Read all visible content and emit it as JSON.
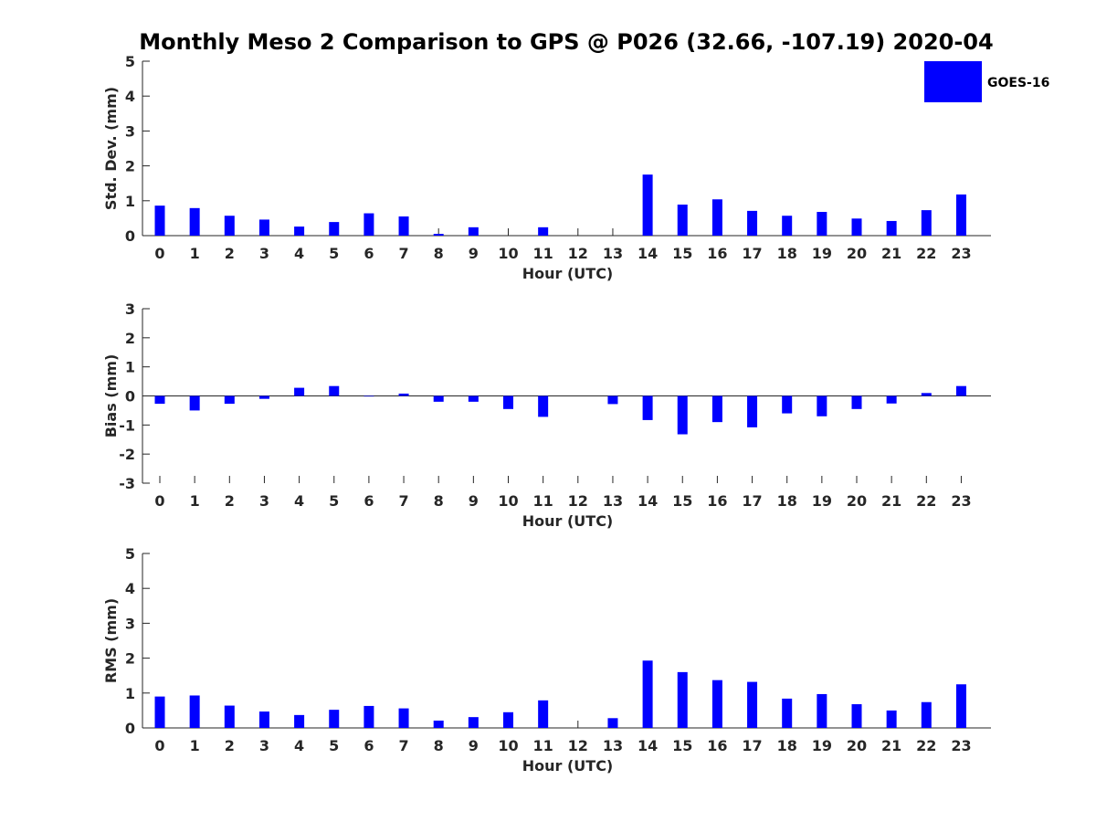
{
  "figure": {
    "title": "Monthly Meso 2 Comparison to GPS @ P026 (32.66, -107.19) 2020-04",
    "legend": {
      "label": "GOES-16",
      "color": "#0000ff",
      "position": "top-right"
    }
  },
  "chart_data": [
    {
      "type": "bar",
      "ylabel": "Std. Dev. (mm)",
      "xlabel": "Hour (UTC)",
      "ylim": [
        0,
        5
      ],
      "yticks": [
        0,
        1,
        2,
        3,
        4,
        5
      ],
      "categories": [
        "0",
        "1",
        "2",
        "3",
        "4",
        "5",
        "6",
        "7",
        "8",
        "9",
        "10",
        "11",
        "12",
        "13",
        "14",
        "15",
        "16",
        "17",
        "18",
        "19",
        "20",
        "21",
        "22",
        "23"
      ],
      "series": [
        {
          "name": "GOES-16",
          "color": "#0000ff",
          "values": [
            0.86,
            0.79,
            0.57,
            0.46,
            0.26,
            0.39,
            0.64,
            0.55,
            0.05,
            0.24,
            0.0,
            0.24,
            0.0,
            0.0,
            1.75,
            0.89,
            1.04,
            0.71,
            0.57,
            0.68,
            0.49,
            0.42,
            0.73,
            1.18
          ]
        }
      ],
      "grid": false
    },
    {
      "type": "bar",
      "ylabel": "Bias (mm)",
      "xlabel": "Hour (UTC)",
      "ylim": [
        -3,
        3
      ],
      "yticks": [
        -3,
        -2,
        -1,
        0,
        1,
        2,
        3
      ],
      "categories": [
        "0",
        "1",
        "2",
        "3",
        "4",
        "5",
        "6",
        "7",
        "8",
        "9",
        "10",
        "11",
        "12",
        "13",
        "14",
        "15",
        "16",
        "17",
        "18",
        "19",
        "20",
        "21",
        "22",
        "23"
      ],
      "series": [
        {
          "name": "GOES-16",
          "color": "#0000ff",
          "values": [
            -0.27,
            -0.5,
            -0.27,
            -0.1,
            0.28,
            0.34,
            -0.02,
            0.08,
            -0.2,
            -0.2,
            -0.45,
            -0.72,
            0.0,
            -0.28,
            -0.83,
            -1.32,
            -0.9,
            -1.08,
            -0.6,
            -0.7,
            -0.45,
            -0.26,
            0.1,
            0.34
          ]
        }
      ],
      "grid": false
    },
    {
      "type": "bar",
      "ylabel": "RMS (mm)",
      "xlabel": "Hour (UTC)",
      "ylim": [
        0,
        5
      ],
      "yticks": [
        0,
        1,
        2,
        3,
        4,
        5
      ],
      "categories": [
        "0",
        "1",
        "2",
        "3",
        "4",
        "5",
        "6",
        "7",
        "8",
        "9",
        "10",
        "11",
        "12",
        "13",
        "14",
        "15",
        "16",
        "17",
        "18",
        "19",
        "20",
        "21",
        "22",
        "23"
      ],
      "series": [
        {
          "name": "GOES-16",
          "color": "#0000ff",
          "values": [
            0.9,
            0.93,
            0.64,
            0.47,
            0.37,
            0.52,
            0.63,
            0.56,
            0.21,
            0.31,
            0.45,
            0.79,
            0.0,
            0.28,
            1.93,
            1.6,
            1.37,
            1.32,
            0.84,
            0.97,
            0.68,
            0.5,
            0.74,
            1.25
          ]
        }
      ],
      "grid": false
    }
  ]
}
